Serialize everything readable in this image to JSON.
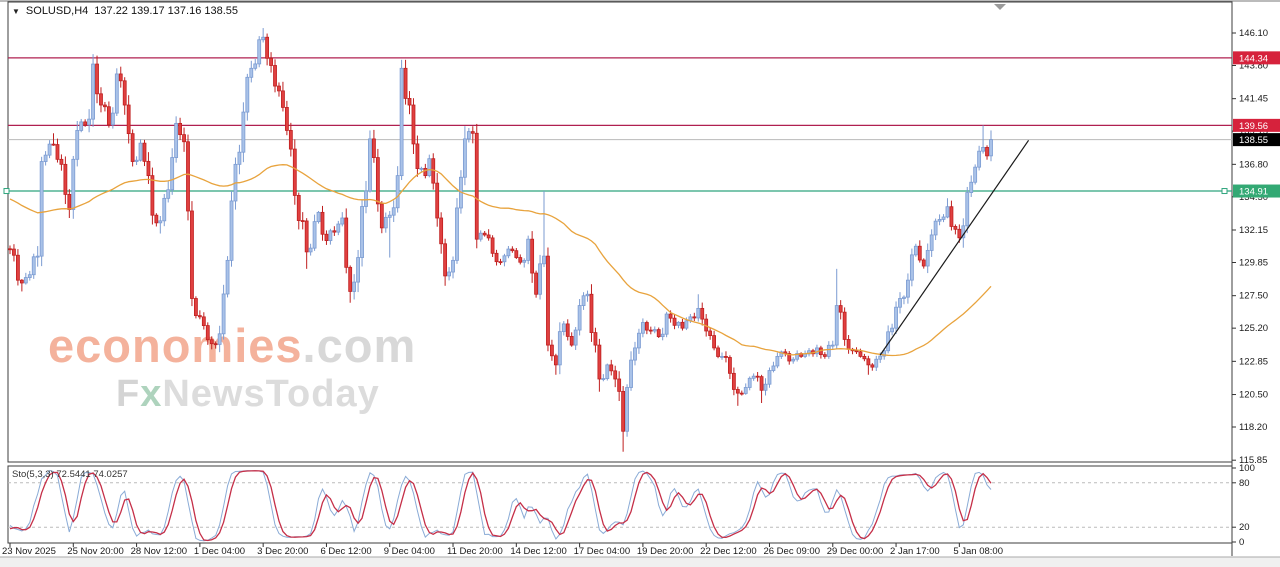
{
  "window": {
    "title_symbol": "SOLUSD,H4",
    "title_ohlc": "137.22 139.17 137.16 138.55",
    "dropdown_glyph": "▼"
  },
  "watermark": {
    "line1_main": "economies",
    "line1_suffix": ".com",
    "line2_f": "F",
    "line2_x": "x",
    "line2_rest": "NewsToday"
  },
  "chart_data": {
    "type": "candlestick",
    "symbol": "SOLUSD",
    "timeframe": "H4",
    "ohlc_display": {
      "open": "137.22",
      "high": "139.17",
      "low": "137.16",
      "close": "138.55"
    },
    "price_axis": {
      "ticks": [
        "146.10",
        "143.80",
        "141.45",
        "139.15",
        "136.80",
        "134.50",
        "132.15",
        "129.85",
        "127.50",
        "125.20",
        "122.85",
        "120.50",
        "118.20",
        "115.85"
      ],
      "top_value": 146.1,
      "bottom_value": 115.85
    },
    "levels": [
      {
        "price": 144.34,
        "label": "144.34",
        "kind": "resistance",
        "line_color": "#b02050",
        "badge_bg": "#d6223c",
        "badge_fg": "#ffffff",
        "handles": false
      },
      {
        "price": 139.56,
        "label": "139.56",
        "kind": "resistance",
        "line_color": "#b02050",
        "badge_bg": "#d6223c",
        "badge_fg": "#ffffff",
        "handles": false
      },
      {
        "price": 134.91,
        "label": "134.91",
        "kind": "support",
        "line_color": "#2fa57d",
        "badge_bg": "#33a974",
        "badge_fg": "#ffffff",
        "handles": true
      }
    ],
    "current_price": {
      "value": 138.55,
      "label": "138.55",
      "line_color": "#b9b9b9",
      "badge_bg": "#000000",
      "badge_fg": "#ffffff"
    },
    "time_axis": {
      "labels": [
        "23 Nov 2025",
        "25 Nov 20:00",
        "28 Nov 12:00",
        "1 Dec 04:00",
        "3 Dec 20:00",
        "6 Dec 12:00",
        "9 Dec 04:00",
        "11 Dec 20:00",
        "14 Dec 12:00",
        "17 Dec 04:00",
        "19 Dec 20:00",
        "22 Dec 12:00",
        "26 Dec 09:00",
        "29 Dec 00:00",
        "2 Jan 17:00",
        "5 Jan 08:00"
      ],
      "candles_per_label": 16
    },
    "candles": {
      "count": 249,
      "warmup": 50,
      "keyframes": [
        [
          -50,
          137.0,
          null,
          null
        ],
        [
          -30,
          133.5,
          null,
          null
        ],
        [
          -15,
          135.8,
          null,
          null
        ],
        [
          -5,
          132.0,
          null,
          null
        ],
        [
          0,
          130.8,
          null,
          null
        ],
        [
          3,
          128.4,
          null,
          127.8
        ],
        [
          7,
          130.3,
          null,
          null
        ],
        [
          8,
          137.0,
          null,
          null
        ],
        [
          11,
          138.2,
          139.0,
          null
        ],
        [
          13,
          136.8,
          null,
          null
        ],
        [
          15,
          133.6,
          null,
          133.0
        ],
        [
          17,
          139.2,
          null,
          null
        ],
        [
          20,
          140.0,
          null,
          null
        ],
        [
          21,
          143.9,
          144.6,
          null
        ],
        [
          23,
          141.0,
          null,
          null
        ],
        [
          25,
          139.6,
          null,
          null
        ],
        [
          27,
          143.2,
          143.6,
          null
        ],
        [
          29,
          141.0,
          null,
          null
        ],
        [
          31,
          137.0,
          null,
          null
        ],
        [
          33,
          138.3,
          null,
          null
        ],
        [
          35,
          136.0,
          null,
          null
        ],
        [
          36,
          133.2,
          null,
          null
        ],
        [
          38,
          132.8,
          null,
          131.9
        ],
        [
          40,
          135.0,
          null,
          null
        ],
        [
          42,
          139.7,
          140.2,
          null
        ],
        [
          44,
          138.4,
          null,
          null
        ],
        [
          46,
          127.3,
          null,
          null
        ],
        [
          48,
          126.0,
          null,
          null
        ],
        [
          51,
          124.1,
          null,
          123.7
        ],
        [
          53,
          124.8,
          null,
          null
        ],
        [
          55,
          130.0,
          null,
          null
        ],
        [
          57,
          136.8,
          null,
          null
        ],
        [
          59,
          140.5,
          null,
          null
        ],
        [
          61,
          143.6,
          null,
          null
        ],
        [
          64,
          145.8,
          146.45,
          null
        ],
        [
          66,
          143.8,
          null,
          null
        ],
        [
          68,
          142.0,
          null,
          null
        ],
        [
          70,
          139.2,
          null,
          null
        ],
        [
          72,
          134.6,
          null,
          null
        ],
        [
          75,
          130.6,
          null,
          129.4
        ],
        [
          78,
          133.4,
          null,
          null
        ],
        [
          80,
          131.4,
          null,
          null
        ],
        [
          82,
          132.0,
          null,
          null
        ],
        [
          84,
          133.0,
          null,
          null
        ],
        [
          86,
          127.8,
          null,
          127.0
        ],
        [
          88,
          130.2,
          null,
          null
        ],
        [
          91,
          138.6,
          139.2,
          null
        ],
        [
          93,
          134.0,
          null,
          null
        ],
        [
          94,
          132.3,
          null,
          null
        ],
        [
          96,
          133.2,
          null,
          130.2
        ],
        [
          98,
          136.0,
          null,
          null
        ],
        [
          99,
          143.6,
          144.2,
          null
        ],
        [
          101,
          141.0,
          null,
          null
        ],
        [
          103,
          136.5,
          null,
          null
        ],
        [
          105,
          136.0,
          null,
          null
        ],
        [
          106,
          137.2,
          null,
          null
        ],
        [
          108,
          133.0,
          null,
          null
        ],
        [
          110,
          128.9,
          null,
          128.2
        ],
        [
          112,
          130.0,
          null,
          null
        ],
        [
          115,
          138.6,
          139.5,
          null
        ],
        [
          117,
          139.0,
          139.5,
          null
        ],
        [
          118,
          131.5,
          null,
          null
        ],
        [
          120,
          131.8,
          null,
          null
        ],
        [
          122,
          130.5,
          null,
          null
        ],
        [
          124,
          129.9,
          null,
          null
        ],
        [
          126,
          130.8,
          null,
          null
        ],
        [
          128,
          130.2,
          null,
          null
        ],
        [
          130,
          130.0,
          null,
          null
        ],
        [
          131,
          131.5,
          null,
          null
        ],
        [
          133,
          127.6,
          null,
          null
        ],
        [
          135,
          130.3,
          134.91,
          null
        ],
        [
          136,
          124.0,
          null,
          null
        ],
        [
          138,
          122.6,
          null,
          121.9
        ],
        [
          140,
          125.5,
          null,
          null
        ],
        [
          142,
          124.0,
          null,
          null
        ],
        [
          144,
          126.8,
          null,
          null
        ],
        [
          146,
          127.6,
          null,
          null
        ],
        [
          148,
          124.0,
          null,
          null
        ],
        [
          149,
          121.6,
          null,
          120.7
        ],
        [
          151,
          122.6,
          null,
          null
        ],
        [
          153,
          121.6,
          null,
          null
        ],
        [
          155,
          117.9,
          null,
          116.45
        ],
        [
          156,
          121.0,
          null,
          null
        ],
        [
          158,
          123.8,
          null,
          null
        ],
        [
          160,
          125.6,
          null,
          null
        ],
        [
          162,
          125.0,
          null,
          null
        ],
        [
          164,
          124.6,
          null,
          null
        ],
        [
          166,
          126.2,
          null,
          null
        ],
        [
          168,
          125.4,
          null,
          null
        ],
        [
          170,
          125.2,
          null,
          null
        ],
        [
          172,
          126.0,
          null,
          null
        ],
        [
          174,
          126.6,
          127.6,
          null
        ],
        [
          176,
          125.0,
          null,
          null
        ],
        [
          178,
          123.8,
          null,
          null
        ],
        [
          180,
          123.2,
          null,
          null
        ],
        [
          182,
          122.0,
          null,
          null
        ],
        [
          184,
          120.6,
          null,
          119.7
        ],
        [
          186,
          121.0,
          null,
          null
        ],
        [
          188,
          121.8,
          null,
          null
        ],
        [
          190,
          120.8,
          null,
          119.9
        ],
        [
          192,
          122.2,
          null,
          null
        ],
        [
          194,
          123.2,
          null,
          null
        ],
        [
          196,
          123.4,
          null,
          null
        ],
        [
          198,
          123.0,
          null,
          null
        ],
        [
          200,
          123.2,
          null,
          null
        ],
        [
          202,
          123.6,
          null,
          null
        ],
        [
          204,
          123.8,
          null,
          null
        ],
        [
          206,
          123.2,
          null,
          null
        ],
        [
          208,
          124.0,
          null,
          null
        ],
        [
          209,
          126.8,
          129.4,
          null
        ],
        [
          211,
          124.4,
          null,
          null
        ],
        [
          213,
          123.6,
          null,
          null
        ],
        [
          215,
          123.2,
          null,
          null
        ],
        [
          217,
          122.6,
          null,
          121.9
        ],
        [
          219,
          123.0,
          null,
          null
        ],
        [
          221,
          123.6,
          null,
          null
        ],
        [
          223,
          125.2,
          null,
          null
        ],
        [
          225,
          127.3,
          null,
          null
        ],
        [
          227,
          128.6,
          null,
          null
        ],
        [
          229,
          131.0,
          null,
          null
        ],
        [
          231,
          129.6,
          null,
          null
        ],
        [
          233,
          131.8,
          null,
          null
        ],
        [
          235,
          132.9,
          null,
          null
        ],
        [
          237,
          133.8,
          134.4,
          null
        ],
        [
          239,
          132.2,
          null,
          null
        ],
        [
          240,
          131.6,
          null,
          null
        ],
        [
          242,
          134.8,
          null,
          null
        ],
        [
          244,
          136.6,
          null,
          null
        ],
        [
          246,
          138.0,
          139.56,
          null
        ],
        [
          247,
          137.4,
          null,
          null
        ],
        [
          248,
          138.55,
          139.2,
          null
        ]
      ]
    },
    "ma": {
      "period": 50,
      "color": "#e8a33d"
    },
    "trendline": {
      "i1": 220,
      "p1": 123.3,
      "i2": 257.5,
      "p2": 138.5,
      "color": "#1a1a1a"
    },
    "stochastic": {
      "name": "Sto(5,3,3)",
      "values_display": "72.5441 74.0257",
      "k_period": 5,
      "d_period": 3,
      "slowing": 3,
      "levels": [
        80,
        20
      ],
      "axis_labels": [
        "100",
        "80",
        "20",
        "0"
      ],
      "k_color": "#8aabd6",
      "d_color": "#c52f48"
    },
    "colors": {
      "up_fill": "#a9c2e8",
      "up_border": "#7b9bd2",
      "down_fill": "#e04040",
      "down_border": "#bf1f1f",
      "frame": "#3c3c3c",
      "axis_text": "#1a1a1a",
      "grid_dash": "#bbbbbb",
      "shift_marker": "#9a9a9a"
    }
  }
}
